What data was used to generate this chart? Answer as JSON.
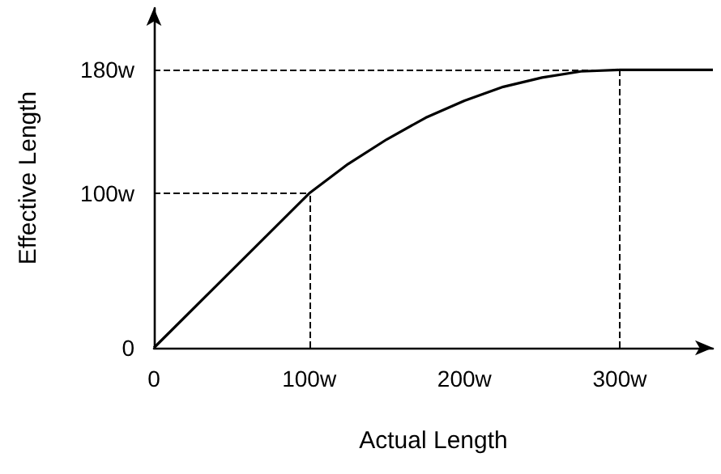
{
  "chart_data": {
    "type": "line",
    "xlabel": "Actual Length",
    "ylabel": "Effective Length",
    "x": [
      0,
      100,
      125,
      150,
      175,
      200,
      225,
      250,
      275,
      300,
      360
    ],
    "series": [
      {
        "color": "#000000",
        "values": [
          0,
          100,
          119,
          135,
          149,
          160,
          169,
          175,
          179,
          180,
          180
        ]
      }
    ],
    "xlim": [
      0,
      360
    ],
    "ylim": [
      0,
      220
    ],
    "xticks": [
      0,
      {
        "value": 100,
        "label": "100w"
      },
      {
        "value": 200,
        "label": "200w"
      },
      {
        "value": 300,
        "label": "300w"
      }
    ],
    "yticks": [
      0,
      {
        "value": 100,
        "label": "100w"
      },
      {
        "value": 180,
        "label": "180w"
      }
    ],
    "ref_lines": [
      {
        "axis": "y",
        "value": 100,
        "line_style": "dashed",
        "color": "#000000"
      },
      {
        "axis": "x",
        "value": 100,
        "line_style": "dashed",
        "color": "#000000"
      },
      {
        "axis": "y",
        "value": 180,
        "line_style": "dashed",
        "color": "#000000"
      },
      {
        "axis": "x",
        "value": 300,
        "line_style": "dashed",
        "color": "#000000"
      }
    ],
    "grid": false,
    "marker": "none",
    "line_style": "solid"
  }
}
